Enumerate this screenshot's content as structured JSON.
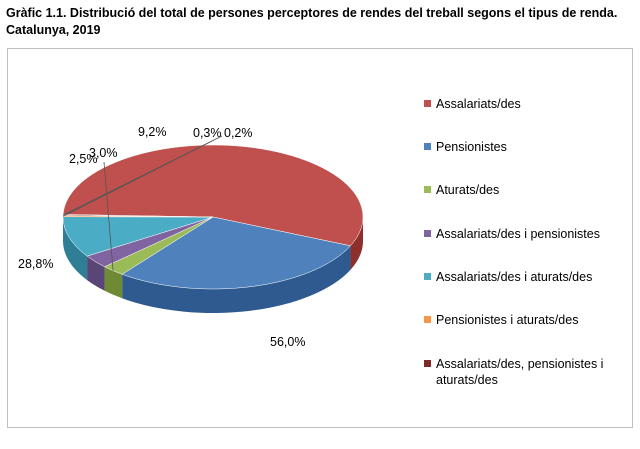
{
  "title": {
    "line1": "Gràfic 1.1. Distribució del total de persones perceptores de rendes del treball segons el tipus de renda.",
    "line2": "Catalunya, 2019"
  },
  "chart_data": {
    "type": "pie",
    "style": "3d",
    "legend_position": "right",
    "slices": [
      {
        "name": "Assalariats/des",
        "value": 56.0,
        "label": "56,0%",
        "color": "#c0504d",
        "side": "#8c2f2d"
      },
      {
        "name": "Pensionistes",
        "value": 28.8,
        "label": "28,8%",
        "color": "#4f81bd",
        "side": "#2e5a8f"
      },
      {
        "name": "Aturats/des",
        "value": 2.5,
        "label": "2,5%",
        "color": "#9bbb59",
        "side": "#6f8a35"
      },
      {
        "name": "Assalariats/des i pensionistes",
        "value": 3.0,
        "label": "3,0%",
        "color": "#8064a2",
        "side": "#5a4577"
      },
      {
        "name": "Assalariats/des i aturats/des",
        "value": 9.2,
        "label": "9,2%",
        "color": "#4bacc6",
        "side": "#2e7f95"
      },
      {
        "name": "Pensionistes i aturats/des",
        "value": 0.3,
        "label": "0,3%",
        "color": "#f79646",
        "side": "#c06a21"
      },
      {
        "name": "Assalariats/des, pensionistes i aturats/des",
        "value": 0.2,
        "label": "0,2%",
        "color": "#7f2a2a",
        "side": "#561a1a"
      }
    ]
  }
}
